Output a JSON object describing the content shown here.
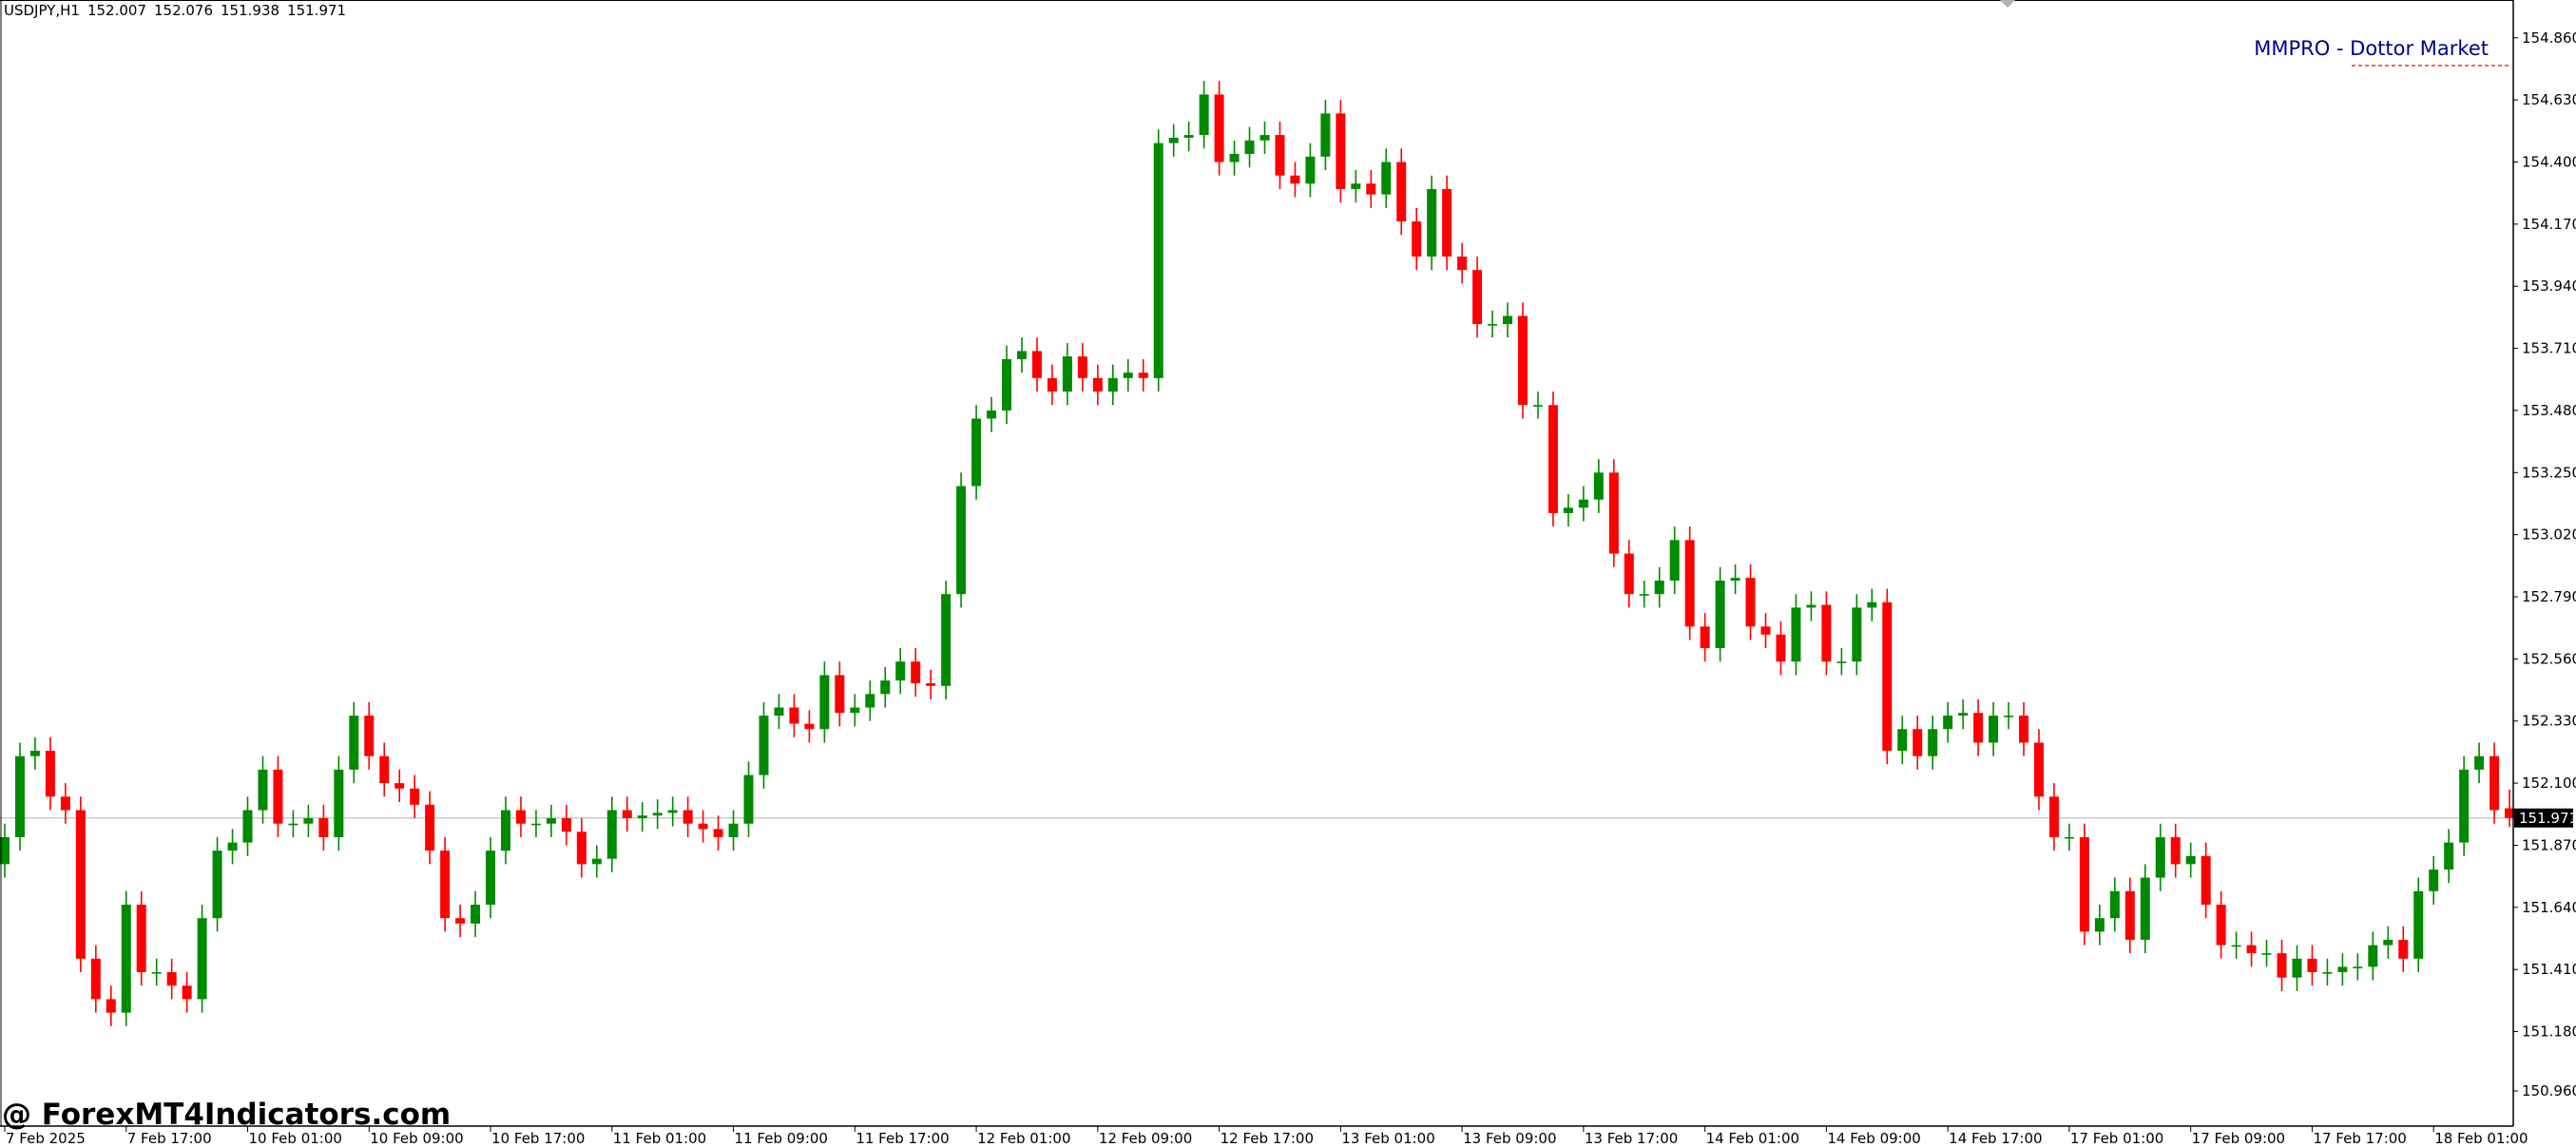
{
  "chart_data": {
    "type": "candlestick",
    "symbol": "USDJPY,H1",
    "annotation": "MMPRO - Dottor Market",
    "watermark": "@ ForexMT4Indicators.com",
    "up_color": "#008a00",
    "down_color": "#ff0000",
    "ylim": [
      150.83,
      155.0
    ],
    "yticks": [
      {
        "value": 154.86,
        "label": "154.860"
      },
      {
        "value": 154.63,
        "label": "154.630"
      },
      {
        "value": 154.4,
        "label": "154.400"
      },
      {
        "value": 154.17,
        "label": "154.170"
      },
      {
        "value": 153.94,
        "label": "153.940"
      },
      {
        "value": 153.71,
        "label": "153.710"
      },
      {
        "value": 153.48,
        "label": "153.480"
      },
      {
        "value": 153.25,
        "label": "153.250"
      },
      {
        "value": 153.02,
        "label": "153.020"
      },
      {
        "value": 152.79,
        "label": "152.790"
      },
      {
        "value": 152.56,
        "label": "152.560"
      },
      {
        "value": 152.33,
        "label": "152.330"
      },
      {
        "value": 152.1,
        "label": "152.100"
      },
      {
        "value": 151.87,
        "label": "151.870"
      },
      {
        "value": 151.64,
        "label": "151.640"
      },
      {
        "value": 151.41,
        "label": "151.410"
      },
      {
        "value": 151.18,
        "label": "151.180"
      },
      {
        "value": 150.96,
        "label": "150.960"
      }
    ],
    "categories": [
      "7 Feb 2025",
      null,
      null,
      null,
      null,
      null,
      null,
      null,
      "7 Feb 17:00",
      null,
      null,
      null,
      null,
      null,
      null,
      null,
      "10 Feb 01:00",
      null,
      null,
      null,
      null,
      null,
      null,
      null,
      "10 Feb 09:00",
      null,
      null,
      null,
      null,
      null,
      null,
      null,
      "10 Feb 17:00",
      null,
      null,
      null,
      null,
      null,
      null,
      null,
      "11 Feb 01:00",
      null,
      null,
      null,
      null,
      null,
      null,
      null,
      "11 Feb 09:00",
      null,
      null,
      null,
      null,
      null,
      null,
      null,
      "11 Feb 17:00",
      null,
      null,
      null,
      null,
      null,
      null,
      null,
      "12 Feb 01:00",
      null,
      null,
      null,
      null,
      null,
      null,
      null,
      "12 Feb 09:00",
      null,
      null,
      null,
      null,
      null,
      null,
      null,
      "12 Feb 17:00",
      null,
      null,
      null,
      null,
      null,
      null,
      null,
      "13 Feb 01:00",
      null,
      null,
      null,
      null,
      null,
      null,
      null,
      "13 Feb 09:00",
      null,
      null,
      null,
      null,
      null,
      null,
      null,
      "13 Feb 17:00",
      null,
      null,
      null,
      null,
      null,
      null,
      null,
      "14 Feb 01:00",
      null,
      null,
      null,
      null,
      null,
      null,
      null,
      "14 Feb 09:00",
      null,
      null,
      null,
      null,
      null,
      null,
      null,
      "14 Feb 17:00",
      null,
      null,
      null,
      null,
      null,
      null,
      null,
      "17 Feb 01:00",
      null,
      null,
      null,
      null,
      null,
      null,
      null,
      "17 Feb 09:00",
      null,
      null,
      null,
      null,
      null,
      null,
      null,
      "17 Feb 17:00",
      null,
      null,
      null,
      null,
      null,
      null,
      null,
      "18 Feb 01:00",
      null,
      null,
      null,
      null,
      null
    ],
    "open": [
      151.8,
      151.9,
      152.2,
      152.22,
      152.05,
      152.0,
      151.45,
      151.3,
      151.25,
      151.65,
      151.4,
      151.4,
      151.35,
      151.3,
      151.6,
      151.85,
      151.88,
      152.0,
      152.15,
      151.95,
      151.95,
      151.97,
      151.9,
      152.15,
      152.35,
      152.2,
      152.1,
      152.08,
      152.02,
      151.85,
      151.6,
      151.58,
      151.65,
      151.85,
      152.0,
      151.95,
      151.95,
      151.97,
      151.92,
      151.8,
      151.82,
      152.0,
      151.97,
      151.98,
      151.99,
      152.0,
      151.95,
      151.93,
      151.9,
      151.95,
      152.13,
      152.35,
      152.38,
      152.32,
      152.3,
      152.5,
      152.36,
      152.38,
      152.43,
      152.48,
      152.55,
      152.47,
      152.46,
      152.8,
      153.2,
      153.45,
      153.48,
      153.67,
      153.7,
      153.6,
      153.55,
      153.68,
      153.6,
      153.55,
      153.6,
      153.62,
      153.6,
      154.47,
      154.49,
      154.5,
      154.65,
      154.4,
      154.43,
      154.48,
      154.5,
      154.35,
      154.32,
      154.42,
      154.58,
      154.3,
      154.32,
      154.28,
      154.4,
      154.18,
      154.05,
      154.3,
      154.05,
      154.0,
      153.8,
      153.8,
      153.83,
      153.5,
      153.5,
      153.1,
      153.12,
      153.15,
      153.25,
      152.95,
      152.8,
      152.8,
      152.85,
      153.0,
      152.68,
      152.6,
      152.85,
      152.86,
      152.68,
      152.65,
      152.55,
      152.75,
      152.76,
      152.55,
      152.55,
      152.75,
      152.77,
      152.22,
      152.3,
      152.2,
      152.3,
      152.35,
      152.36,
      152.25,
      152.35,
      152.35,
      152.25,
      152.05,
      151.9,
      151.9,
      151.55,
      151.6,
      151.7,
      151.52,
      151.75,
      151.9,
      151.8,
      151.83,
      151.65,
      151.5,
      151.5,
      151.47,
      151.47,
      151.38,
      151.45,
      151.4,
      151.4,
      151.42,
      151.42,
      151.5,
      151.52,
      151.45,
      151.7,
      151.78,
      151.88,
      152.15,
      152.2,
      152.007
    ],
    "high": [
      151.95,
      152.25,
      152.27,
      152.27,
      152.1,
      152.05,
      151.5,
      151.35,
      151.7,
      151.7,
      151.45,
      151.45,
      151.4,
      151.65,
      151.9,
      151.93,
      152.05,
      152.2,
      152.2,
      152.0,
      152.02,
      152.02,
      152.2,
      152.4,
      152.4,
      152.25,
      152.15,
      152.13,
      152.07,
      151.9,
      151.65,
      151.7,
      151.9,
      152.05,
      152.05,
      152.0,
      152.02,
      152.02,
      151.97,
      151.87,
      152.05,
      152.05,
      152.03,
      152.04,
      152.05,
      152.05,
      152.0,
      151.98,
      152.0,
      152.18,
      152.4,
      152.43,
      152.43,
      152.37,
      152.55,
      152.55,
      152.43,
      152.48,
      152.53,
      152.6,
      152.6,
      152.52,
      152.85,
      153.25,
      153.5,
      153.53,
      153.72,
      153.75,
      153.75,
      153.65,
      153.73,
      153.73,
      153.65,
      153.65,
      153.67,
      153.67,
      154.52,
      154.54,
      154.55,
      154.7,
      154.7,
      154.48,
      154.53,
      154.55,
      154.55,
      154.4,
      154.47,
      154.63,
      154.63,
      154.37,
      154.37,
      154.45,
      154.45,
      154.23,
      154.35,
      154.35,
      154.1,
      154.05,
      153.85,
      153.88,
      153.88,
      153.55,
      153.55,
      153.17,
      153.2,
      153.3,
      153.3,
      153.0,
      152.85,
      152.9,
      153.05,
      153.05,
      152.73,
      152.9,
      152.91,
      152.91,
      152.73,
      152.7,
      152.8,
      152.81,
      152.81,
      152.6,
      152.8,
      152.82,
      152.82,
      152.35,
      152.35,
      152.35,
      152.4,
      152.41,
      152.41,
      152.4,
      152.4,
      152.4,
      152.3,
      152.1,
      151.95,
      151.95,
      151.65,
      151.75,
      151.75,
      151.8,
      151.95,
      151.95,
      151.88,
      151.88,
      151.7,
      151.55,
      151.55,
      151.52,
      151.52,
      151.5,
      151.5,
      151.45,
      151.47,
      151.47,
      151.55,
      151.57,
      151.57,
      151.75,
      151.83,
      151.93,
      152.2,
      152.25,
      152.25,
      152.076
    ],
    "low": [
      151.75,
      151.85,
      152.15,
      152.0,
      151.95,
      151.4,
      151.25,
      151.2,
      151.2,
      151.35,
      151.35,
      151.3,
      151.25,
      151.25,
      151.55,
      151.8,
      151.83,
      151.95,
      151.9,
      151.9,
      151.9,
      151.85,
      151.85,
      152.1,
      152.15,
      152.05,
      152.03,
      151.97,
      151.8,
      151.55,
      151.53,
      151.53,
      151.6,
      151.8,
      151.9,
      151.9,
      151.9,
      151.87,
      151.75,
      151.75,
      151.77,
      151.92,
      151.92,
      151.93,
      151.94,
      151.9,
      151.88,
      151.85,
      151.85,
      151.9,
      152.08,
      152.3,
      152.27,
      152.25,
      152.25,
      152.31,
      152.31,
      152.33,
      152.38,
      152.43,
      152.42,
      152.41,
      152.41,
      152.75,
      153.15,
      153.4,
      153.43,
      153.62,
      153.55,
      153.5,
      153.5,
      153.55,
      153.5,
      153.5,
      153.55,
      153.55,
      153.55,
      154.42,
      154.44,
      154.45,
      154.35,
      154.35,
      154.38,
      154.43,
      154.3,
      154.27,
      154.27,
      154.37,
      154.25,
      154.25,
      154.23,
      154.23,
      154.13,
      154.0,
      154.0,
      154.0,
      153.95,
      153.75,
      153.75,
      153.75,
      153.45,
      153.45,
      153.05,
      153.05,
      153.07,
      153.1,
      152.9,
      152.75,
      152.75,
      152.75,
      152.8,
      152.63,
      152.55,
      152.55,
      152.8,
      152.63,
      152.6,
      152.5,
      152.5,
      152.7,
      152.5,
      152.5,
      152.5,
      152.7,
      152.17,
      152.17,
      152.15,
      152.15,
      152.25,
      152.3,
      152.2,
      152.2,
      152.3,
      152.2,
      152.0,
      151.85,
      151.85,
      151.5,
      151.5,
      151.55,
      151.47,
      151.47,
      151.7,
      151.75,
      151.75,
      151.6,
      151.45,
      151.45,
      151.42,
      151.42,
      151.33,
      151.33,
      151.35,
      151.35,
      151.35,
      151.37,
      151.37,
      151.45,
      151.4,
      151.4,
      151.65,
      151.73,
      151.83,
      152.1,
      151.95,
      151.938
    ],
    "close": [
      151.9,
      152.2,
      152.22,
      152.05,
      152.0,
      151.45,
      151.3,
      151.25,
      151.65,
      151.4,
      151.4,
      151.35,
      151.3,
      151.6,
      151.85,
      151.88,
      152.0,
      152.15,
      151.95,
      151.95,
      151.97,
      151.9,
      152.15,
      152.35,
      152.2,
      152.1,
      152.08,
      152.02,
      151.85,
      151.6,
      151.58,
      151.65,
      151.85,
      152.0,
      151.95,
      151.95,
      151.97,
      151.92,
      151.8,
      151.82,
      152.0,
      151.97,
      151.98,
      151.99,
      152.0,
      151.95,
      151.93,
      151.9,
      151.95,
      152.13,
      152.35,
      152.38,
      152.32,
      152.3,
      152.5,
      152.36,
      152.38,
      152.43,
      152.48,
      152.55,
      152.47,
      152.46,
      152.8,
      153.2,
      153.45,
      153.48,
      153.67,
      153.7,
      153.6,
      153.55,
      153.68,
      153.6,
      153.55,
      153.6,
      153.62,
      153.6,
      154.47,
      154.49,
      154.5,
      154.65,
      154.4,
      154.43,
      154.48,
      154.5,
      154.35,
      154.32,
      154.42,
      154.58,
      154.3,
      154.32,
      154.28,
      154.4,
      154.18,
      154.05,
      154.3,
      154.05,
      154.0,
      153.8,
      153.8,
      153.83,
      153.5,
      153.5,
      153.1,
      153.12,
      153.15,
      153.25,
      152.95,
      152.8,
      152.8,
      152.85,
      153.0,
      152.68,
      152.6,
      152.85,
      152.86,
      152.68,
      152.65,
      152.55,
      152.75,
      152.76,
      152.55,
      152.55,
      152.75,
      152.77,
      152.22,
      152.3,
      152.2,
      152.3,
      152.35,
      152.36,
      152.25,
      152.35,
      152.35,
      152.25,
      152.05,
      151.9,
      151.9,
      151.55,
      151.6,
      151.7,
      151.52,
      151.75,
      151.9,
      151.8,
      151.83,
      151.65,
      151.5,
      151.5,
      151.47,
      151.47,
      151.38,
      151.45,
      151.4,
      151.4,
      151.42,
      151.42,
      151.5,
      151.52,
      151.45,
      151.7,
      151.78,
      151.88,
      152.15,
      152.2,
      152.0,
      151.971
    ]
  }
}
